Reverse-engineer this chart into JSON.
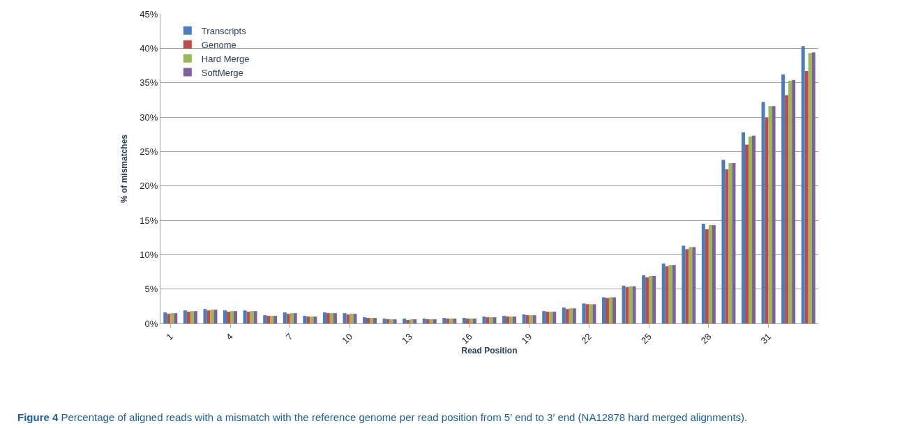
{
  "chart_data": {
    "type": "bar",
    "xlabel": "Read Position",
    "ylabel": "% of mismatches",
    "categories": [
      "1",
      null,
      null,
      "4",
      null,
      null,
      "7",
      null,
      null,
      "10",
      null,
      null,
      "13",
      null,
      null,
      "16",
      null,
      null,
      "19",
      null,
      null,
      "22",
      null,
      null,
      "25",
      null,
      null,
      "28",
      null,
      null,
      "31",
      null,
      null
    ],
    "series": [
      {
        "name": "Transcripts",
        "color": "#4a7ebb",
        "values": [
          1.6,
          1.9,
          2.1,
          1.9,
          1.9,
          1.2,
          1.6,
          1.1,
          1.6,
          1.5,
          0.9,
          0.7,
          0.7,
          0.7,
          0.8,
          0.8,
          1.0,
          1.1,
          1.3,
          1.8,
          2.3,
          2.9,
          3.8,
          5.5,
          7.0,
          8.7,
          11.3,
          14.5,
          23.8,
          27.8,
          32.2,
          36.2,
          40.3
        ]
      },
      {
        "name": "Genome",
        "color": "#be4b48",
        "values": [
          1.4,
          1.7,
          1.9,
          1.7,
          1.7,
          1.1,
          1.4,
          1.0,
          1.5,
          1.3,
          0.8,
          0.6,
          0.5,
          0.6,
          0.7,
          0.7,
          0.9,
          1.0,
          1.2,
          1.7,
          2.1,
          2.8,
          3.7,
          5.3,
          6.7,
          8.3,
          10.8,
          13.7,
          22.4,
          26.0,
          29.9,
          33.2,
          36.7
        ]
      },
      {
        "name": "Hard Merge",
        "color": "#98b954",
        "values": [
          1.5,
          1.8,
          2.0,
          1.8,
          1.8,
          1.1,
          1.5,
          1.0,
          1.5,
          1.4,
          0.8,
          0.6,
          0.6,
          0.6,
          0.7,
          0.7,
          0.9,
          1.0,
          1.2,
          1.7,
          2.2,
          2.8,
          3.8,
          5.4,
          6.9,
          8.5,
          11.1,
          14.3,
          23.3,
          27.2,
          31.6,
          35.3,
          39.3
        ]
      },
      {
        "name": "SoftMerge",
        "color": "#7d60a0",
        "values": [
          1.5,
          1.8,
          2.0,
          1.8,
          1.8,
          1.1,
          1.5,
          1.0,
          1.5,
          1.4,
          0.8,
          0.6,
          0.6,
          0.6,
          0.7,
          0.7,
          0.9,
          1.0,
          1.2,
          1.7,
          2.2,
          2.8,
          3.8,
          5.4,
          6.9,
          8.5,
          11.1,
          14.3,
          23.3,
          27.3,
          31.6,
          35.4,
          39.4
        ]
      }
    ],
    "ylim": [
      0,
      45
    ],
    "yticks": [
      {
        "value": 0,
        "label": "0%"
      },
      {
        "value": 5,
        "label": "5%"
      },
      {
        "value": 10,
        "label": "10%"
      },
      {
        "value": 15,
        "label": "15%"
      },
      {
        "value": 20,
        "label": "20%"
      },
      {
        "value": 25,
        "label": "25%"
      },
      {
        "value": 30,
        "label": "30%"
      },
      {
        "value": 35,
        "label": "35%"
      },
      {
        "value": 40,
        "label": "40%"
      },
      {
        "value": 45,
        "label": "45%"
      }
    ],
    "grid": "y",
    "legend": "top left",
    "annotations": [
      "Figure 4 Percentage of aligned reads with a mismatch with the reference genome per read position from 5′ end to 3′ end (NA12878 hard merged alignments)."
    ]
  }
}
